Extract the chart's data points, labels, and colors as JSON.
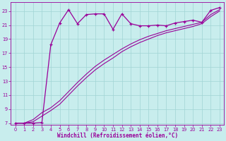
{
  "xlabel": "Windchill (Refroidissement éolien,°C)",
  "x": [
    0,
    1,
    2,
    3,
    4,
    5,
    6,
    7,
    8,
    9,
    10,
    11,
    12,
    13,
    14,
    15,
    16,
    17,
    18,
    19,
    20,
    21,
    22,
    23
  ],
  "line_markers": [
    7.0,
    7.0,
    7.0,
    7.1,
    18.2,
    21.3,
    23.2,
    21.2,
    22.5,
    22.6,
    22.6,
    20.4,
    22.6,
    21.2,
    20.9,
    20.9,
    21.0,
    20.9,
    21.3,
    21.5,
    21.7,
    21.4,
    23.1,
    23.5
  ],
  "line_diag1": [
    7.0,
    7.0,
    7.5,
    8.5,
    9.2,
    10.2,
    11.5,
    12.8,
    14.0,
    15.1,
    16.0,
    16.8,
    17.6,
    18.3,
    18.9,
    19.4,
    19.8,
    20.2,
    20.5,
    20.8,
    21.1,
    21.4,
    22.5,
    23.2
  ],
  "line_diag2": [
    7.0,
    7.0,
    7.2,
    8.0,
    8.8,
    9.7,
    11.0,
    12.3,
    13.5,
    14.6,
    15.5,
    16.3,
    17.2,
    17.9,
    18.5,
    19.0,
    19.5,
    19.9,
    20.2,
    20.5,
    20.8,
    21.2,
    22.2,
    23.0
  ],
  "line_color": "#990099",
  "bg_color": "#c8eded",
  "grid_color": "#a0d4d4",
  "ylim_min": 7,
  "ylim_max": 24,
  "xlim_min": 0,
  "xlim_max": 23,
  "yticks": [
    7,
    9,
    11,
    13,
    15,
    17,
    19,
    21,
    23
  ],
  "xticks": [
    0,
    1,
    2,
    3,
    4,
    5,
    6,
    7,
    8,
    9,
    10,
    11,
    12,
    13,
    14,
    15,
    16,
    17,
    18,
    19,
    20,
    21,
    22,
    23
  ],
  "xlabel_fontsize": 5.5,
  "tick_labelsize": 4.8,
  "linewidth_marker": 0.9,
  "linewidth_diag": 0.8
}
